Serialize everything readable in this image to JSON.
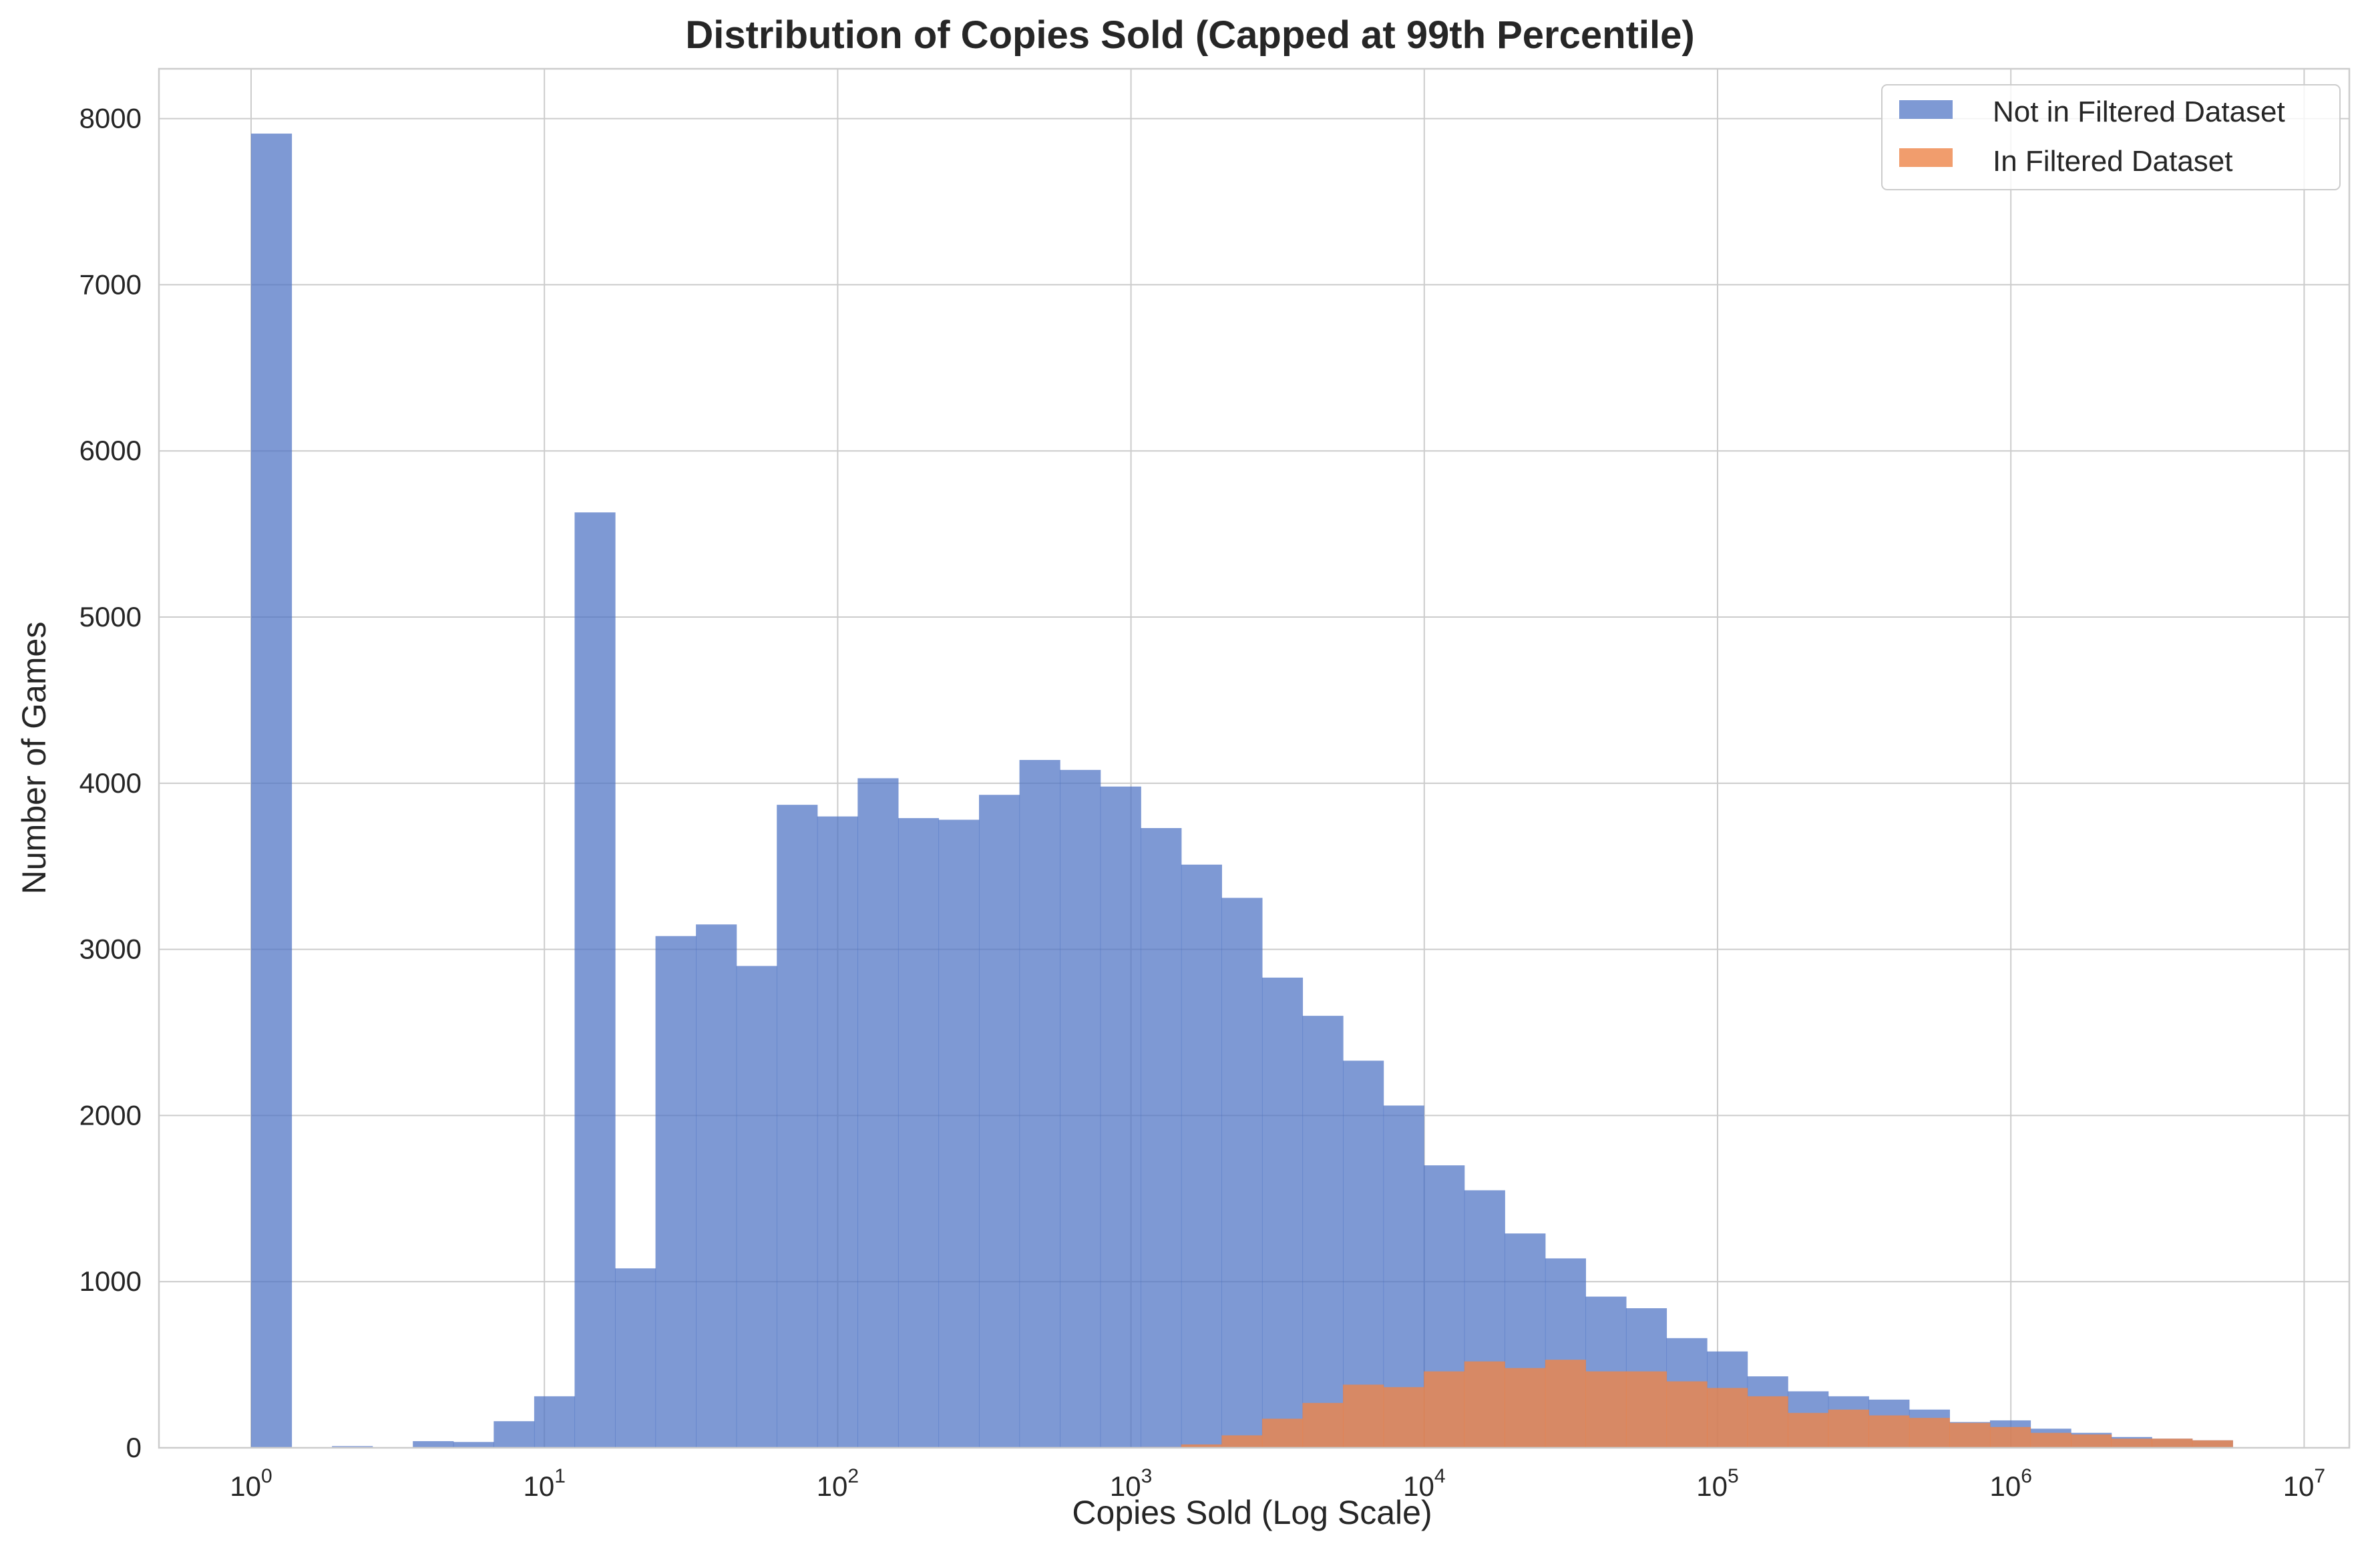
{
  "chart_data": {
    "type": "histogram",
    "title": "Distribution of Copies Sold (Capped at 99th Percentile)",
    "xlabel": "Copies Sold (Log Scale)",
    "ylabel": "Number of Games",
    "x_scale": "log",
    "xlim": [
      0.6,
      11000000
    ],
    "ylim": [
      0,
      8300
    ],
    "grid": true,
    "legend_position": "top-right",
    "x_ticks": [
      {
        "value": 1,
        "base": "10",
        "exp": "0"
      },
      {
        "value": 10,
        "base": "10",
        "exp": "1"
      },
      {
        "value": 100,
        "base": "10",
        "exp": "2"
      },
      {
        "value": 1000,
        "base": "10",
        "exp": "3"
      },
      {
        "value": 10000,
        "base": "10",
        "exp": "4"
      },
      {
        "value": 100000,
        "base": "10",
        "exp": "5"
      },
      {
        "value": 1000000,
        "base": "10",
        "exp": "6"
      },
      {
        "value": 10000000,
        "base": "10",
        "exp": "7"
      }
    ],
    "y_ticks": [
      "0",
      "1000",
      "2000",
      "3000",
      "4000",
      "5000",
      "6000",
      "7000",
      "8000"
    ],
    "bin_log_start": 0,
    "bin_log_width": 0.13788,
    "series": [
      {
        "name": "Not in Filtered Dataset",
        "color": "#4c72c4",
        "values": [
          7910,
          0,
          10,
          0,
          40,
          35,
          160,
          310,
          5630,
          1080,
          3080,
          3150,
          2900,
          3870,
          3800,
          4030,
          3790,
          3780,
          3930,
          4140,
          4080,
          3980,
          3730,
          3510,
          3310,
          2830,
          2600,
          2330,
          2060,
          1700,
          1550,
          1290,
          1140,
          910,
          840,
          660,
          580,
          430,
          340,
          310,
          290,
          230,
          155,
          165,
          115,
          90,
          65,
          55,
          45,
          0
        ]
      },
      {
        "name": "In Filtered Dataset",
        "color": "#ee8548",
        "values": [
          0,
          0,
          0,
          0,
          0,
          0,
          0,
          0,
          0,
          0,
          0,
          0,
          0,
          0,
          0,
          0,
          0,
          0,
          0,
          0,
          0,
          0,
          5,
          20,
          75,
          175,
          270,
          380,
          365,
          460,
          520,
          480,
          530,
          460,
          460,
          400,
          360,
          310,
          210,
          230,
          195,
          180,
          150,
          125,
          90,
          80,
          55,
          55,
          45,
          0
        ]
      }
    ]
  }
}
